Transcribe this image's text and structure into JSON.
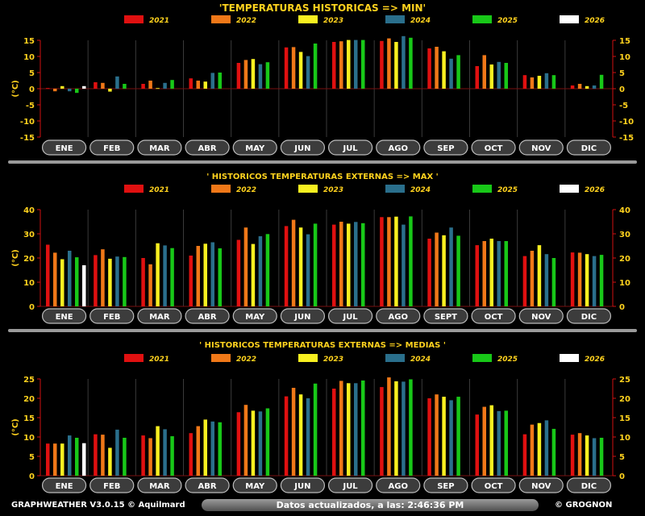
{
  "months": [
    "ENE",
    "FEB",
    "MAR",
    "ABR",
    "MAY",
    "JUN",
    "JUL",
    "AGO",
    "SEP",
    "OCT",
    "NOV",
    "DIC"
  ],
  "legend": [
    {
      "label": "2021",
      "color": "#e01010"
    },
    {
      "label": "2022",
      "color": "#f07818"
    },
    {
      "label": "2023",
      "color": "#f8f020"
    },
    {
      "label": "2024",
      "color": "#2a6f8c"
    },
    {
      "label": "2025",
      "color": "#18c818"
    },
    {
      "label": "2026",
      "color": "#ffffff"
    }
  ],
  "chart_data": [
    {
      "type": "bar",
      "title": "'TEMPERATURAS HISTORICAS  => MIN'",
      "ylabel": "(°C)",
      "ylim": [
        -15,
        15
      ],
      "yticks": [
        15,
        10,
        5,
        0,
        -5,
        -10,
        -15
      ],
      "categories": [
        "ENE",
        "FEB",
        "MAR",
        "ABR",
        "MAY",
        "JUN",
        "JUL",
        "AGO",
        "SEP",
        "OCT",
        "NOV",
        "DIC"
      ],
      "series": [
        {
          "name": "2021",
          "values": [
            0.2,
            2.0,
            1.5,
            3.2,
            8.0,
            12.8,
            14.5,
            14.8,
            12.5,
            7.0,
            4.2,
            1.0
          ]
        },
        {
          "name": "2022",
          "values": [
            -0.8,
            1.8,
            2.5,
            2.5,
            8.9,
            12.9,
            14.7,
            15.6,
            13.0,
            10.4,
            3.5,
            1.5
          ]
        },
        {
          "name": "2023",
          "values": [
            0.8,
            -0.9,
            0.2,
            2.2,
            9.2,
            11.4,
            15.1,
            14.5,
            11.6,
            7.5,
            4.0,
            0.8
          ]
        },
        {
          "name": "2024",
          "values": [
            -0.8,
            3.8,
            1.8,
            4.9,
            7.6,
            10.1,
            15.1,
            16.3,
            9.3,
            8.3,
            4.8,
            1.0
          ]
        },
        {
          "name": "2025",
          "values": [
            -1.3,
            1.5,
            2.7,
            5.0,
            8.2,
            14.0,
            15.1,
            15.8,
            10.4,
            8.0,
            4.2,
            4.3
          ]
        },
        {
          "name": "2026",
          "values": [
            0.8,
            null,
            null,
            null,
            null,
            null,
            null,
            null,
            null,
            null,
            null,
            null
          ]
        }
      ]
    },
    {
      "type": "bar",
      "title": "' HISTORICOS TEMPERATURAS EXTERNAS => MAX '",
      "ylabel": "(°C)",
      "ylim": [
        0,
        40
      ],
      "yticks": [
        40,
        30,
        20,
        10,
        0
      ],
      "categories": [
        "ENE",
        "FEB",
        "MAR",
        "ABR",
        "MAY",
        "JUN",
        "JUL",
        "AGO",
        "SEPT",
        "OCT",
        "NOV",
        "DIC"
      ],
      "series": [
        {
          "name": "2021",
          "values": [
            25.5,
            21.2,
            20.0,
            21.0,
            27.5,
            33.2,
            33.8,
            36.9,
            28.0,
            25.3,
            20.8,
            22.3
          ]
        },
        {
          "name": "2022",
          "values": [
            22.2,
            23.6,
            17.4,
            25.0,
            32.6,
            35.8,
            35.0,
            36.9,
            30.5,
            27.0,
            23.0,
            22.2
          ]
        },
        {
          "name": "2023",
          "values": [
            19.5,
            19.7,
            26.1,
            25.9,
            25.8,
            32.6,
            34.2,
            37.1,
            29.4,
            28.0,
            25.3,
            21.6
          ]
        },
        {
          "name": "2024",
          "values": [
            23.0,
            20.6,
            25.2,
            26.5,
            29.0,
            29.8,
            34.9,
            33.8,
            32.6,
            27.0,
            21.6,
            20.8
          ]
        },
        {
          "name": "2025",
          "values": [
            20.3,
            20.4,
            24.1,
            24.0,
            29.9,
            34.2,
            34.4,
            37.2,
            29.2,
            27.0,
            20.0,
            21.3
          ]
        },
        {
          "name": "2026",
          "values": [
            17.0,
            null,
            null,
            null,
            null,
            null,
            null,
            null,
            null,
            null,
            null,
            null
          ]
        }
      ]
    },
    {
      "type": "bar",
      "title": "' HISTORICOS TEMPERATURAS EXTERNAS => MEDIAS '",
      "ylabel": "(°C)",
      "ylim": [
        0,
        25
      ],
      "yticks": [
        25,
        20,
        15,
        10,
        5,
        0
      ],
      "categories": [
        "ENE",
        "FEB",
        "MAR",
        "ABR",
        "MAY",
        "JUN",
        "JUL",
        "AGO",
        "SEP",
        "OCT",
        "NOV",
        "DIC"
      ],
      "series": [
        {
          "name": "2021",
          "values": [
            8.3,
            10.7,
            10.4,
            11.0,
            16.4,
            20.5,
            22.5,
            22.9,
            20.0,
            15.8,
            10.7,
            10.6
          ]
        },
        {
          "name": "2022",
          "values": [
            8.3,
            10.6,
            9.7,
            12.8,
            18.3,
            22.7,
            24.5,
            25.4,
            21.0,
            17.8,
            13.2,
            11.0
          ]
        },
        {
          "name": "2023",
          "values": [
            8.3,
            7.2,
            12.8,
            14.5,
            16.8,
            21.0,
            23.9,
            24.4,
            20.4,
            18.2,
            13.6,
            10.4
          ]
        },
        {
          "name": "2024",
          "values": [
            10.4,
            11.9,
            12.0,
            14.0,
            16.6,
            20.0,
            23.9,
            24.3,
            19.5,
            16.7,
            14.3,
            9.7
          ]
        },
        {
          "name": "2025",
          "values": [
            9.8,
            9.8,
            10.2,
            13.8,
            17.4,
            23.8,
            24.6,
            24.9,
            20.4,
            16.8,
            12.1,
            9.8
          ]
        },
        {
          "name": "2026",
          "values": [
            8.4,
            null,
            null,
            null,
            null,
            null,
            null,
            null,
            null,
            null,
            null,
            null
          ]
        }
      ]
    }
  ],
  "footer": {
    "left": "GRAPHWEATHER V3.0.15 © Aquilmard",
    "center": "Datos actualizados, a las: 2:46:36 PM",
    "right": "© GROGNON"
  }
}
